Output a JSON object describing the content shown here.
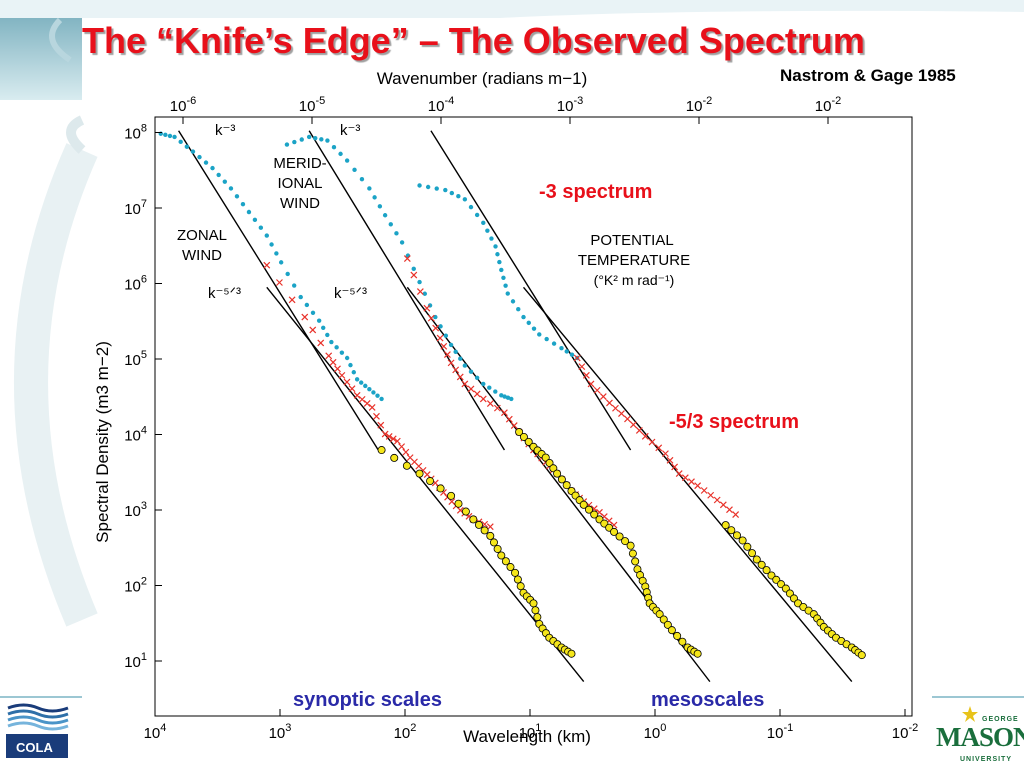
{
  "slide": {
    "title": "The “Knife’s Edge” – The Observed Spectrum",
    "citation": "Nastrom & Gage 1985",
    "annotations": {
      "minus3": "-3 spectrum",
      "minus53": "-5/3 spectrum",
      "synoptic": "synoptic scales",
      "meso": "mesoscales"
    },
    "logos": {
      "cola": "COLA",
      "gmu_top": "GEORGE",
      "gmu_main": "MASON",
      "gmu_bottom": "UNIVERSITY"
    },
    "colors": {
      "title": "#e8101a",
      "annotation_red": "#e8101a",
      "annotation_blue": "#2a2aa8",
      "dot": "#1ba3c6",
      "cross": "#e8322a",
      "circle_fill": "#f5e61a"
    }
  },
  "chart_data": {
    "type": "scatter",
    "xlabel": "Wavelength (km)",
    "ylabel": "Spectral Density (m3 m−2)",
    "top_axis_label": "Wavenumber (radians m−1)",
    "x_log": true,
    "y_log": true,
    "xlim": [
      10000,
      0.01
    ],
    "ylim": [
      4,
      180000000
    ],
    "x_ticks": [
      "10^4",
      "10^3",
      "10^2",
      "10^1",
      "10^0",
      "10^-1",
      "10^-2"
    ],
    "top_ticks": [
      "10^-6",
      "10^-5",
      "10^-4",
      "10^-3",
      "10^-2",
      "10^-2"
    ],
    "y_ticks": [
      "10^1",
      "10^2",
      "10^3",
      "10^4",
      "10^5",
      "10^6",
      "10^7",
      "10^8"
    ],
    "text_labels": {
      "zonal": [
        "ZONAL",
        "WIND"
      ],
      "merid": [
        "MERID-",
        "IONAL",
        "WIND"
      ],
      "potential": [
        "POTENTIAL",
        "TEMPERATURE",
        "(°K² m rad⁻¹)"
      ],
      "k3": "k⁻³",
      "k53": "k⁻⁵ᐟ³"
    },
    "series": [
      {
        "group": "zonal wind",
        "marker": "dot",
        "points": [
          [
            9000,
            110000000.0
          ],
          [
            7000,
            100000000.0
          ],
          [
            5000,
            65000000.0
          ],
          [
            3500,
            40000000.0
          ],
          [
            2500,
            22000000.0
          ],
          [
            1800,
            11000000.0
          ],
          [
            1300,
            5500000.0
          ],
          [
            1000,
            2500000.0
          ],
          [
            700,
            900000.0
          ],
          [
            500,
            450000.0
          ],
          [
            400,
            240000.0
          ],
          [
            300,
            150000.0
          ],
          [
            250,
            80000.0
          ],
          [
            200,
            60000.0
          ],
          [
            160,
            45000.0
          ]
        ]
      },
      {
        "group": "zonal wind",
        "marker": "cross",
        "points": [
          [
            1300,
            2300000.0
          ],
          [
            650,
            500000.0
          ],
          [
            420,
            160000.0
          ],
          [
            330,
            90000.0
          ],
          [
            250,
            50000.0
          ],
          [
            190,
            35000.0
          ],
          [
            150,
            16000.0
          ],
          [
            120,
            13000.0
          ],
          [
            95,
            8000.0
          ],
          [
            75,
            5500.0
          ],
          [
            60,
            3800.0
          ],
          [
            48,
            2500.0
          ],
          [
            38,
            1700.0
          ],
          [
            30,
            1300.0
          ],
          [
            22,
            1050.0
          ]
        ]
      },
      {
        "group": "zonal wind",
        "marker": "circle",
        "points": [
          [
            160,
            10000.0
          ],
          [
            80,
            5000.0
          ],
          [
            45,
            2600.0
          ],
          [
            30,
            1300.0
          ],
          [
            22,
            800
          ],
          [
            18,
            450
          ],
          [
            14,
            270
          ],
          [
            12,
            150
          ],
          [
            10,
            110
          ],
          [
            9,
            60
          ],
          [
            7.5,
            40
          ],
          [
            6,
            30
          ],
          [
            5,
            25
          ]
        ]
      },
      {
        "group": "meridional wind",
        "marker": "dot",
        "points": [
          [
            900,
            80000000.0
          ],
          [
            600,
            100000000.0
          ],
          [
            430,
            90000000.0
          ],
          [
            300,
            50000000.0
          ],
          [
            200,
            22000000.0
          ],
          [
            150,
            10000000.0
          ],
          [
            110,
            4500000.0
          ],
          [
            80,
            1400000.0
          ],
          [
            60,
            500000.0
          ],
          [
            45,
            220000.0
          ],
          [
            35,
            120000.0
          ],
          [
            25,
            70000.0
          ],
          [
            18,
            50000.0
          ],
          [
            15,
            45000.0
          ]
        ]
      },
      {
        "group": "meridional wind",
        "marker": "cross",
        "points": [
          [
            100,
            2800000.0
          ],
          [
            70,
            650000.0
          ],
          [
            55,
            270000.0
          ],
          [
            45,
            130000.0
          ],
          [
            35,
            70000.0
          ],
          [
            25,
            45000.0
          ],
          [
            17,
            30000.0
          ],
          [
            13,
            17000.0
          ],
          [
            10,
            10000.0
          ],
          [
            8,
            7000.0
          ],
          [
            6.5,
            5000.0
          ],
          [
            5,
            3000.0
          ],
          [
            4,
            2200.0
          ],
          [
            3,
            1600.0
          ],
          [
            2.3,
            1100.0
          ]
        ]
      },
      {
        "group": "meridional wind",
        "marker": "circle",
        "points": [
          [
            13,
            17000.0
          ],
          [
            10,
            11000.0
          ],
          [
            8,
            8000.0
          ],
          [
            6.5,
            5000.0
          ],
          [
            5,
            3000.0
          ],
          [
            4,
            2000.0
          ],
          [
            3,
            1300.0
          ],
          [
            2.3,
            900
          ],
          [
            1.7,
            600
          ],
          [
            1.5,
            300
          ],
          [
            1.3,
            180
          ],
          [
            1.2,
            110
          ],
          [
            1.0,
            80
          ],
          [
            0.8,
            50
          ],
          [
            0.6,
            30
          ],
          [
            0.5,
            25
          ]
        ]
      },
      {
        "group": "potential temperature",
        "marker": "dot",
        "points": [
          [
            80,
            24000000.0
          ],
          [
            50,
            21000000.0
          ],
          [
            35,
            16000000.0
          ],
          [
            25,
            8000000.0
          ],
          [
            20,
            4000000.0
          ],
          [
            18,
            2000000.0
          ],
          [
            16,
            1000000.0
          ],
          [
            12,
            500000.0
          ],
          [
            9,
            300000.0
          ],
          [
            6,
            200000.0
          ],
          [
            4.5,
            150000.0
          ]
        ]
      },
      {
        "group": "potential temperature",
        "marker": "cross",
        "points": [
          [
            4.5,
            150000.0
          ],
          [
            3.5,
            70000.0
          ],
          [
            2.5,
            40000.0
          ],
          [
            1.8,
            25000.0
          ],
          [
            1.3,
            15000.0
          ],
          [
            0.9,
            9000.0
          ],
          [
            0.7,
            5000.0
          ],
          [
            0.5,
            3500.0
          ],
          [
            0.35,
            2300.0
          ],
          [
            0.25,
            1500.0
          ]
        ]
      },
      {
        "group": "potential temperature",
        "marker": "circle",
        "points": [
          [
            0.3,
            1100.0
          ],
          [
            0.22,
            700
          ],
          [
            0.17,
            400
          ],
          [
            0.13,
            250
          ],
          [
            0.1,
            170
          ],
          [
            0.08,
            110
          ],
          [
            0.06,
            80
          ],
          [
            0.05,
            55
          ],
          [
            0.04,
            40
          ],
          [
            0.03,
            30
          ],
          [
            0.025,
            24
          ]
        ]
      }
    ],
    "reference_lines": [
      {
        "slope": "-3",
        "from": [
          6500,
          120000000.0
        ],
        "to": [
          170,
          10000.0
        ]
      },
      {
        "slope": "-5/3",
        "from": [
          1300,
          1200000.0
        ],
        "to": [
          4,
          11
        ]
      },
      {
        "slope": "-3",
        "from": [
          600,
          120000000.0
        ],
        "to": [
          17,
          10000.0
        ]
      },
      {
        "slope": "-5/3",
        "from": [
          100,
          1200000.0
        ],
        "to": [
          0.4,
          11
        ]
      },
      {
        "slope": "-3",
        "from": [
          65,
          120000000.0
        ],
        "to": [
          1.7,
          10000.0
        ]
      },
      {
        "slope": "-5/3",
        "from": [
          12,
          1200000.0
        ],
        "to": [
          0.03,
          11
        ]
      }
    ]
  }
}
